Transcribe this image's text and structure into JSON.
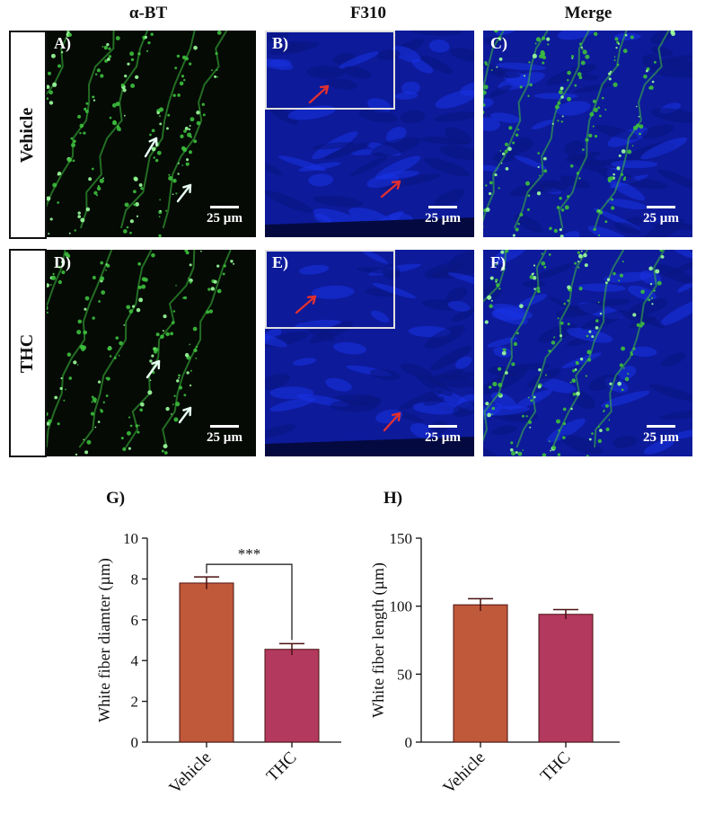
{
  "columns": [
    "α-BT",
    "F310",
    "Merge"
  ],
  "rows": [
    "Vehicle",
    "THC"
  ],
  "panels": [
    {
      "label": "A)",
      "scale": "25 µm"
    },
    {
      "label": "B)",
      "scale": "25 µm"
    },
    {
      "label": "C)",
      "scale": "25 µm"
    },
    {
      "label": "D)",
      "scale": "25 µm"
    },
    {
      "label": "E)",
      "scale": "25 µm"
    },
    {
      "label": "F)",
      "scale": "25 µm"
    }
  ],
  "colors": {
    "green_stain": "#3dbf3d",
    "blue_stain": "#1a2fd8",
    "vehicle_bar": "#c0583a",
    "thc_bar": "#b3395f",
    "arrow_white": "#e8fff4",
    "arrow_red": "#e03030"
  },
  "chart_data": [
    {
      "panel_label": "G)",
      "type": "bar",
      "categories": [
        "Vehicle",
        "THC"
      ],
      "values": [
        7.8,
        4.55
      ],
      "errors": [
        0.3,
        0.28
      ],
      "ylabel": "White fiber diamter (µm)",
      "ylim": [
        0,
        10
      ],
      "yticks": [
        0,
        2,
        4,
        6,
        8,
        10
      ],
      "significance": "***"
    },
    {
      "panel_label": "H)",
      "type": "bar",
      "categories": [
        "Vehicle",
        "THC"
      ],
      "values": [
        101,
        94
      ],
      "errors": [
        4.5,
        3.5
      ],
      "ylabel": "White fiber length (µm)",
      "ylim": [
        0,
        150
      ],
      "yticks": [
        0,
        50,
        100,
        150
      ]
    }
  ]
}
